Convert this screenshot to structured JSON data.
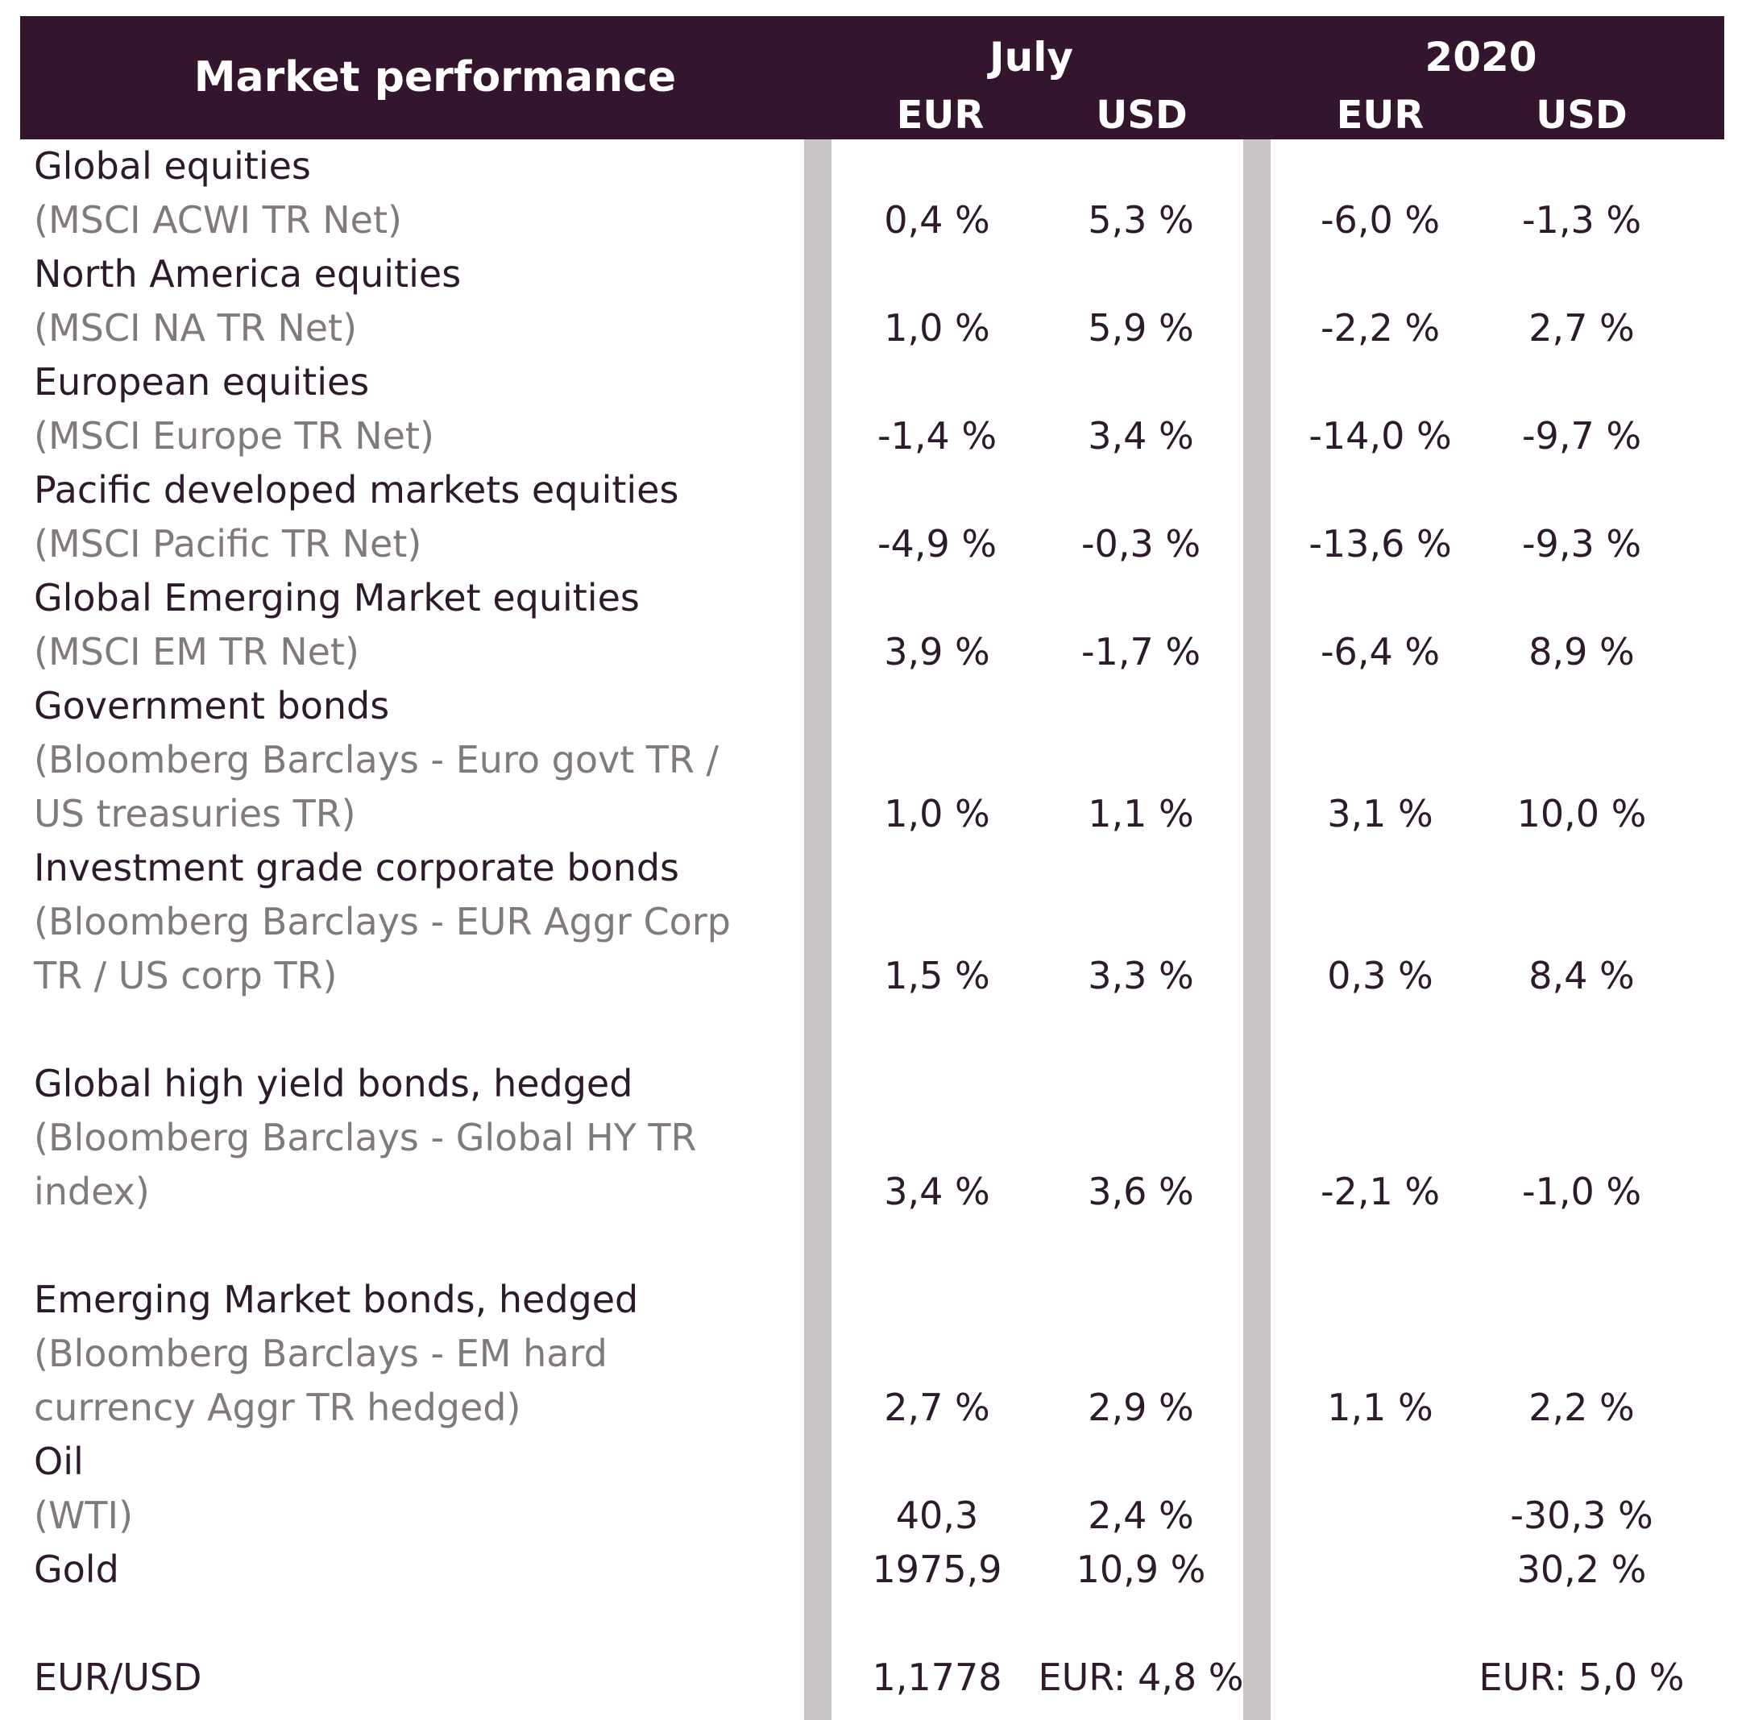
{
  "header": {
    "title": "Market performance",
    "periods": [
      "July",
      "2020"
    ],
    "currencies": [
      "EUR",
      "USD",
      "EUR",
      "USD"
    ]
  },
  "rows": [
    {
      "label": [
        "Global equities"
      ],
      "sub": [
        "(MSCI ACWI TR Net)"
      ],
      "values": [
        "0,4 %",
        "5,3 %",
        "-6,0 %",
        "-1,3 %"
      ]
    },
    {
      "label": [
        "North America equities"
      ],
      "sub": [
        "(MSCI NA TR Net)"
      ],
      "values": [
        "1,0 %",
        "5,9 %",
        "-2,2 %",
        "2,7 %"
      ]
    },
    {
      "label": [
        "European equities"
      ],
      "sub": [
        "(MSCI Europe TR Net)"
      ],
      "values": [
        "-1,4 %",
        "3,4 %",
        "-14,0 %",
        "-9,7 %"
      ]
    },
    {
      "label": [
        "Pacific developed markets equities"
      ],
      "sub": [
        "(MSCI Pacific TR Net)"
      ],
      "values": [
        "-4,9 %",
        "-0,3 %",
        "-13,6 %",
        "-9,3 %"
      ]
    },
    {
      "label": [
        "Global Emerging Market equities"
      ],
      "sub": [
        "(MSCI EM TR Net)"
      ],
      "values": [
        "3,9 %",
        "-1,7 %",
        "-6,4 %",
        "8,9 %"
      ]
    },
    {
      "label": [
        "Government bonds"
      ],
      "sub": [
        "(Bloomberg Barclays - Euro govt TR /",
        "US treasuries TR)"
      ],
      "values": [
        "1,0 %",
        "1,1 %",
        "3,1 %",
        "10,0 %"
      ]
    },
    {
      "label": [
        "Investment grade corporate bonds"
      ],
      "sub": [
        "(Bloomberg Barclays - EUR Aggr Corp",
        "TR / US corp TR)"
      ],
      "values": [
        "1,5 %",
        "3,3 %",
        "0,3 %",
        "8,4 %"
      ]
    },
    {
      "label": [
        "Global high yield bonds, hedged"
      ],
      "sub": [
        "(Bloomberg Barclays - Global HY TR",
        "index)"
      ],
      "values": [
        "3,4 %",
        "3,6 %",
        "-2,1 %",
        "-1,0 %"
      ]
    },
    {
      "label": [
        "Emerging Market bonds, hedged"
      ],
      "sub": [
        "(Bloomberg Barclays - EM hard",
        "currency Aggr TR hedged)"
      ],
      "values": [
        "2,7 %",
        "2,9 %",
        "1,1 %",
        "2,2 %"
      ]
    },
    {
      "label": [
        "Oil"
      ],
      "sub": [
        "(WTI)"
      ],
      "values": [
        "40,3",
        "2,4 %",
        "",
        "-30,3 %"
      ]
    },
    {
      "label": [
        "Gold"
      ],
      "sub": [],
      "values": [
        "1975,9",
        "10,9 %",
        "",
        "30,2 %"
      ]
    },
    {
      "label": [
        "EUR/USD"
      ],
      "sub": [],
      "values": [
        "1,1778",
        "EUR: 4,8 %",
        "",
        "EUR: 5,0 %"
      ]
    }
  ]
}
